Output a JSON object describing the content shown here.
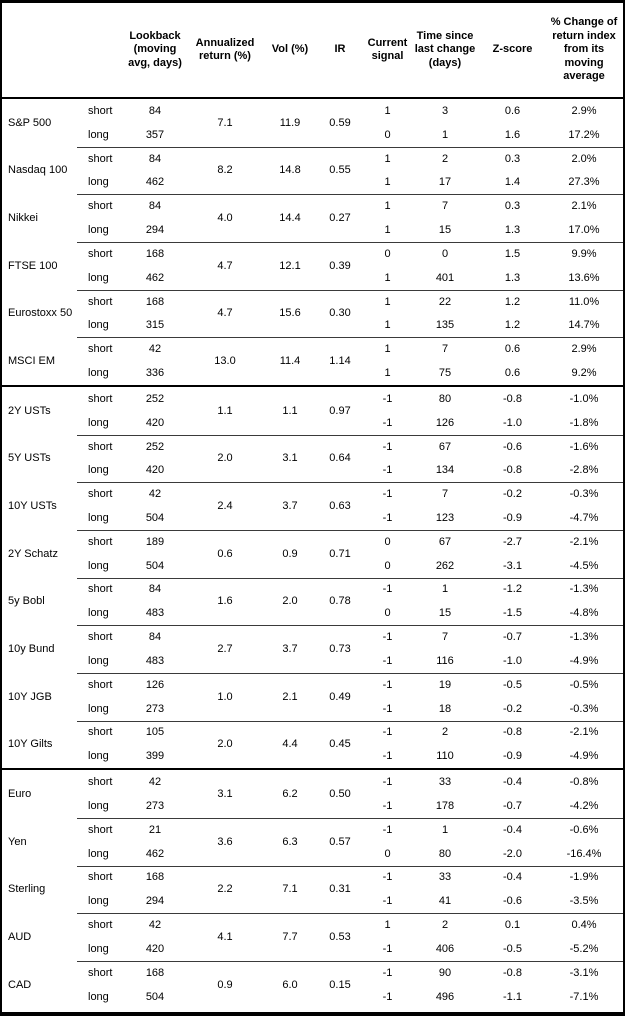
{
  "headers": {
    "lookback": "Lookback (moving avg, days)",
    "annualized": "Annualized return (%)",
    "vol": "Vol (%)",
    "ir": "IR",
    "signal": "Current signal",
    "time_since": "Time since last change (days)",
    "zscore": "Z-score",
    "pct_change": "% Change of return index from its moving average"
  },
  "sections": [
    {
      "id": "equities",
      "assets": [
        {
          "name": "S&P 500",
          "annualized_return": "7.1",
          "vol": "11.9",
          "ir": "0.59",
          "rows": [
            {
              "leg": "short",
              "lookback": "84",
              "signal": "1",
              "days": "3",
              "z": "0.6",
              "pct": "2.9%"
            },
            {
              "leg": "long",
              "lookback": "357",
              "signal": "0",
              "days": "1",
              "z": "1.6",
              "pct": "17.2%"
            }
          ]
        },
        {
          "name": "Nasdaq 100",
          "annualized_return": "8.2",
          "vol": "14.8",
          "ir": "0.55",
          "rows": [
            {
              "leg": "short",
              "lookback": "84",
              "signal": "1",
              "days": "2",
              "z": "0.3",
              "pct": "2.0%"
            },
            {
              "leg": "long",
              "lookback": "462",
              "signal": "1",
              "days": "17",
              "z": "1.4",
              "pct": "27.3%"
            }
          ]
        },
        {
          "name": "Nikkei",
          "annualized_return": "4.0",
          "vol": "14.4",
          "ir": "0.27",
          "rows": [
            {
              "leg": "short",
              "lookback": "84",
              "signal": "1",
              "days": "7",
              "z": "0.3",
              "pct": "2.1%"
            },
            {
              "leg": "long",
              "lookback": "294",
              "signal": "1",
              "days": "15",
              "z": "1.3",
              "pct": "17.0%"
            }
          ]
        },
        {
          "name": "FTSE 100",
          "annualized_return": "4.7",
          "vol": "12.1",
          "ir": "0.39",
          "rows": [
            {
              "leg": "short",
              "lookback": "168",
              "signal": "0",
              "days": "0",
              "z": "1.5",
              "pct": "9.9%"
            },
            {
              "leg": "long",
              "lookback": "462",
              "signal": "1",
              "days": "401",
              "z": "1.3",
              "pct": "13.6%"
            }
          ]
        },
        {
          "name": "Eurostoxx 50",
          "annualized_return": "4.7",
          "vol": "15.6",
          "ir": "0.30",
          "rows": [
            {
              "leg": "short",
              "lookback": "168",
              "signal": "1",
              "days": "22",
              "z": "1.2",
              "pct": "11.0%"
            },
            {
              "leg": "long",
              "lookback": "315",
              "signal": "1",
              "days": "135",
              "z": "1.2",
              "pct": "14.7%"
            }
          ]
        },
        {
          "name": "MSCI EM",
          "annualized_return": "13.0",
          "vol": "11.4",
          "ir": "1.14",
          "rows": [
            {
              "leg": "short",
              "lookback": "42",
              "signal": "1",
              "days": "7",
              "z": "0.6",
              "pct": "2.9%"
            },
            {
              "leg": "long",
              "lookback": "336",
              "signal": "1",
              "days": "75",
              "z": "0.6",
              "pct": "9.2%"
            }
          ]
        }
      ]
    },
    {
      "id": "bonds",
      "assets": [
        {
          "name": "2Y USTs",
          "annualized_return": "1.1",
          "vol": "1.1",
          "ir": "0.97",
          "rows": [
            {
              "leg": "short",
              "lookback": "252",
              "signal": "-1",
              "days": "80",
              "z": "-0.8",
              "pct": "-1.0%"
            },
            {
              "leg": "long",
              "lookback": "420",
              "signal": "-1",
              "days": "126",
              "z": "-1.0",
              "pct": "-1.8%"
            }
          ]
        },
        {
          "name": "5Y USTs",
          "annualized_return": "2.0",
          "vol": "3.1",
          "ir": "0.64",
          "rows": [
            {
              "leg": "short",
              "lookback": "252",
              "signal": "-1",
              "days": "67",
              "z": "-0.6",
              "pct": "-1.6%"
            },
            {
              "leg": "long",
              "lookback": "420",
              "signal": "-1",
              "days": "134",
              "z": "-0.8",
              "pct": "-2.8%"
            }
          ]
        },
        {
          "name": "10Y USTs",
          "annualized_return": "2.4",
          "vol": "3.7",
          "ir": "0.63",
          "rows": [
            {
              "leg": "short",
              "lookback": "42",
              "signal": "-1",
              "days": "7",
              "z": "-0.2",
              "pct": "-0.3%"
            },
            {
              "leg": "long",
              "lookback": "504",
              "signal": "-1",
              "days": "123",
              "z": "-0.9",
              "pct": "-4.7%"
            }
          ]
        },
        {
          "name": "2Y Schatz",
          "annualized_return": "0.6",
          "vol": "0.9",
          "ir": "0.71",
          "rows": [
            {
              "leg": "short",
              "lookback": "189",
              "signal": "0",
              "days": "67",
              "z": "-2.7",
              "pct": "-2.1%"
            },
            {
              "leg": "long",
              "lookback": "504",
              "signal": "0",
              "days": "262",
              "z": "-3.1",
              "pct": "-4.5%"
            }
          ]
        },
        {
          "name": "5y Bobl",
          "annualized_return": "1.6",
          "vol": "2.0",
          "ir": "0.78",
          "rows": [
            {
              "leg": "short",
              "lookback": "84",
              "signal": "-1",
              "days": "1",
              "z": "-1.2",
              "pct": "-1.3%"
            },
            {
              "leg": "long",
              "lookback": "483",
              "signal": "0",
              "days": "15",
              "z": "-1.5",
              "pct": "-4.8%"
            }
          ]
        },
        {
          "name": "10y Bund",
          "annualized_return": "2.7",
          "vol": "3.7",
          "ir": "0.73",
          "rows": [
            {
              "leg": "short",
              "lookback": "84",
              "signal": "-1",
              "days": "7",
              "z": "-0.7",
              "pct": "-1.3%"
            },
            {
              "leg": "long",
              "lookback": "483",
              "signal": "-1",
              "days": "116",
              "z": "-1.0",
              "pct": "-4.9%"
            }
          ]
        },
        {
          "name": "10Y JGB",
          "annualized_return": "1.0",
          "vol": "2.1",
          "ir": "0.49",
          "rows": [
            {
              "leg": "short",
              "lookback": "126",
              "signal": "-1",
              "days": "19",
              "z": "-0.5",
              "pct": "-0.5%"
            },
            {
              "leg": "long",
              "lookback": "273",
              "signal": "-1",
              "days": "18",
              "z": "-0.2",
              "pct": "-0.3%"
            }
          ]
        },
        {
          "name": "10Y Gilts",
          "annualized_return": "2.0",
          "vol": "4.4",
          "ir": "0.45",
          "rows": [
            {
              "leg": "short",
              "lookback": "105",
              "signal": "-1",
              "days": "2",
              "z": "-0.8",
              "pct": "-2.1%"
            },
            {
              "leg": "long",
              "lookback": "399",
              "signal": "-1",
              "days": "110",
              "z": "-0.9",
              "pct": "-4.9%"
            }
          ]
        }
      ]
    },
    {
      "id": "fx",
      "assets": [
        {
          "name": "Euro",
          "annualized_return": "3.1",
          "vol": "6.2",
          "ir": "0.50",
          "rows": [
            {
              "leg": "short",
              "lookback": "42",
              "signal": "-1",
              "days": "33",
              "z": "-0.4",
              "pct": "-0.8%"
            },
            {
              "leg": "long",
              "lookback": "273",
              "signal": "-1",
              "days": "178",
              "z": "-0.7",
              "pct": "-4.2%"
            }
          ]
        },
        {
          "name": "Yen",
          "annualized_return": "3.6",
          "vol": "6.3",
          "ir": "0.57",
          "rows": [
            {
              "leg": "short",
              "lookback": "21",
              "signal": "-1",
              "days": "1",
              "z": "-0.4",
              "pct": "-0.6%"
            },
            {
              "leg": "long",
              "lookback": "462",
              "signal": "0",
              "days": "80",
              "z": "-2.0",
              "pct": "-16.4%"
            }
          ]
        },
        {
          "name": "Sterling",
          "annualized_return": "2.2",
          "vol": "7.1",
          "ir": "0.31",
          "rows": [
            {
              "leg": "short",
              "lookback": "168",
              "signal": "-1",
              "days": "33",
              "z": "-0.4",
              "pct": "-1.9%"
            },
            {
              "leg": "long",
              "lookback": "294",
              "signal": "-1",
              "days": "41",
              "z": "-0.6",
              "pct": "-3.5%"
            }
          ]
        },
        {
          "name": "AUD",
          "annualized_return": "4.1",
          "vol": "7.7",
          "ir": "0.53",
          "rows": [
            {
              "leg": "short",
              "lookback": "42",
              "signal": "1",
              "days": "2",
              "z": "0.1",
              "pct": "0.4%"
            },
            {
              "leg": "long",
              "lookback": "420",
              "signal": "-1",
              "days": "406",
              "z": "-0.5",
              "pct": "-5.2%"
            }
          ]
        },
        {
          "name": "CAD",
          "annualized_return": "0.9",
          "vol": "6.0",
          "ir": "0.15",
          "rows": [
            {
              "leg": "short",
              "lookback": "168",
              "signal": "-1",
              "days": "90",
              "z": "-0.8",
              "pct": "-3.1%"
            },
            {
              "leg": "long",
              "lookback": "504",
              "signal": "-1",
              "days": "496",
              "z": "-1.1",
              "pct": "-7.1%"
            }
          ]
        }
      ]
    }
  ]
}
